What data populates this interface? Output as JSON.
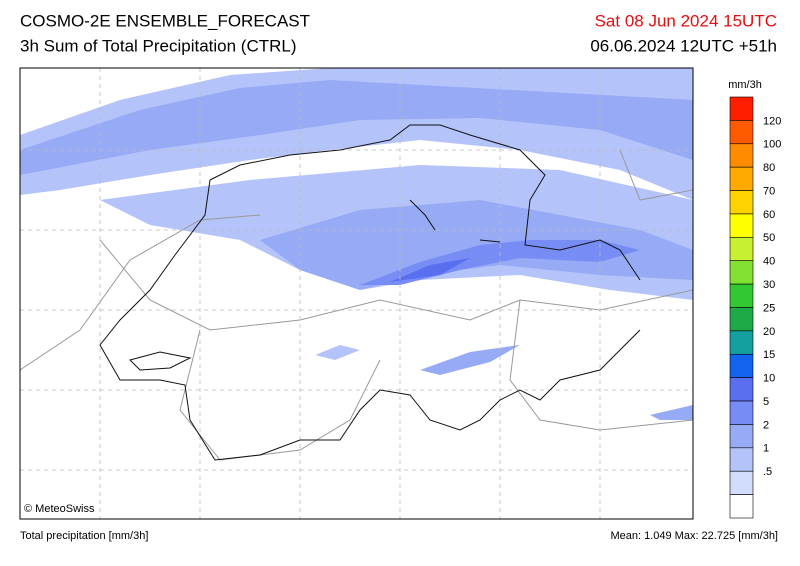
{
  "header": {
    "title": "COSMO-2E ENSEMBLE_FORECAST",
    "subtitle": "3h Sum of Total Precipitation (CTRL)",
    "valid_time": "Sat 08 Jun 2024 15UTC",
    "run_time": "06.06.2024 12UTC +51h"
  },
  "map": {
    "credit": "© MeteoSwiss"
  },
  "legend": {
    "unit": "mm/3h",
    "colors": [
      "#ff1e00",
      "#ff5a00",
      "#ff8c00",
      "#ffa800",
      "#ffd200",
      "#ffff00",
      "#c8f032",
      "#82e132",
      "#32c832",
      "#1eaa46",
      "#14a0a0",
      "#1464f0",
      "#5a6ef0",
      "#788cf5",
      "#96aaf5",
      "#b4c3fa",
      "#d2dcfc",
      "#ffffff"
    ],
    "labels": [
      "120",
      "100",
      "80",
      "70",
      "60",
      "50",
      "40",
      "30",
      "25",
      "20",
      "15",
      "10",
      "5",
      "2",
      "1",
      ".5"
    ]
  },
  "footer": {
    "left": "Total precipitation [mm/3h]",
    "right": "Mean:  1.049 Max:  22.725 [mm/3h]"
  }
}
